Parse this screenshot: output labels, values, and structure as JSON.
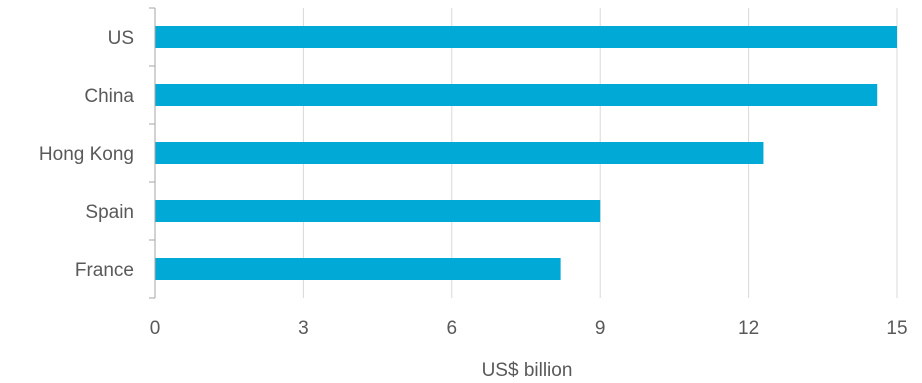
{
  "chart_data": {
    "type": "bar",
    "orientation": "horizontal",
    "categories": [
      "US",
      "China",
      "Hong Kong",
      "Spain",
      "France"
    ],
    "values": [
      15.0,
      14.6,
      12.3,
      9.0,
      8.2
    ],
    "xlabel": "US$ billion",
    "ylabel": "",
    "xlim": [
      0,
      15
    ],
    "xticks": [
      "0",
      "3",
      "6",
      "9",
      "12",
      "15"
    ],
    "grid": "vertical",
    "legend": "none",
    "colors": {
      "bar": "#00A9D6",
      "grid": "#D9D9D9",
      "axis": "#A6A6A6",
      "text": "#595959"
    }
  }
}
